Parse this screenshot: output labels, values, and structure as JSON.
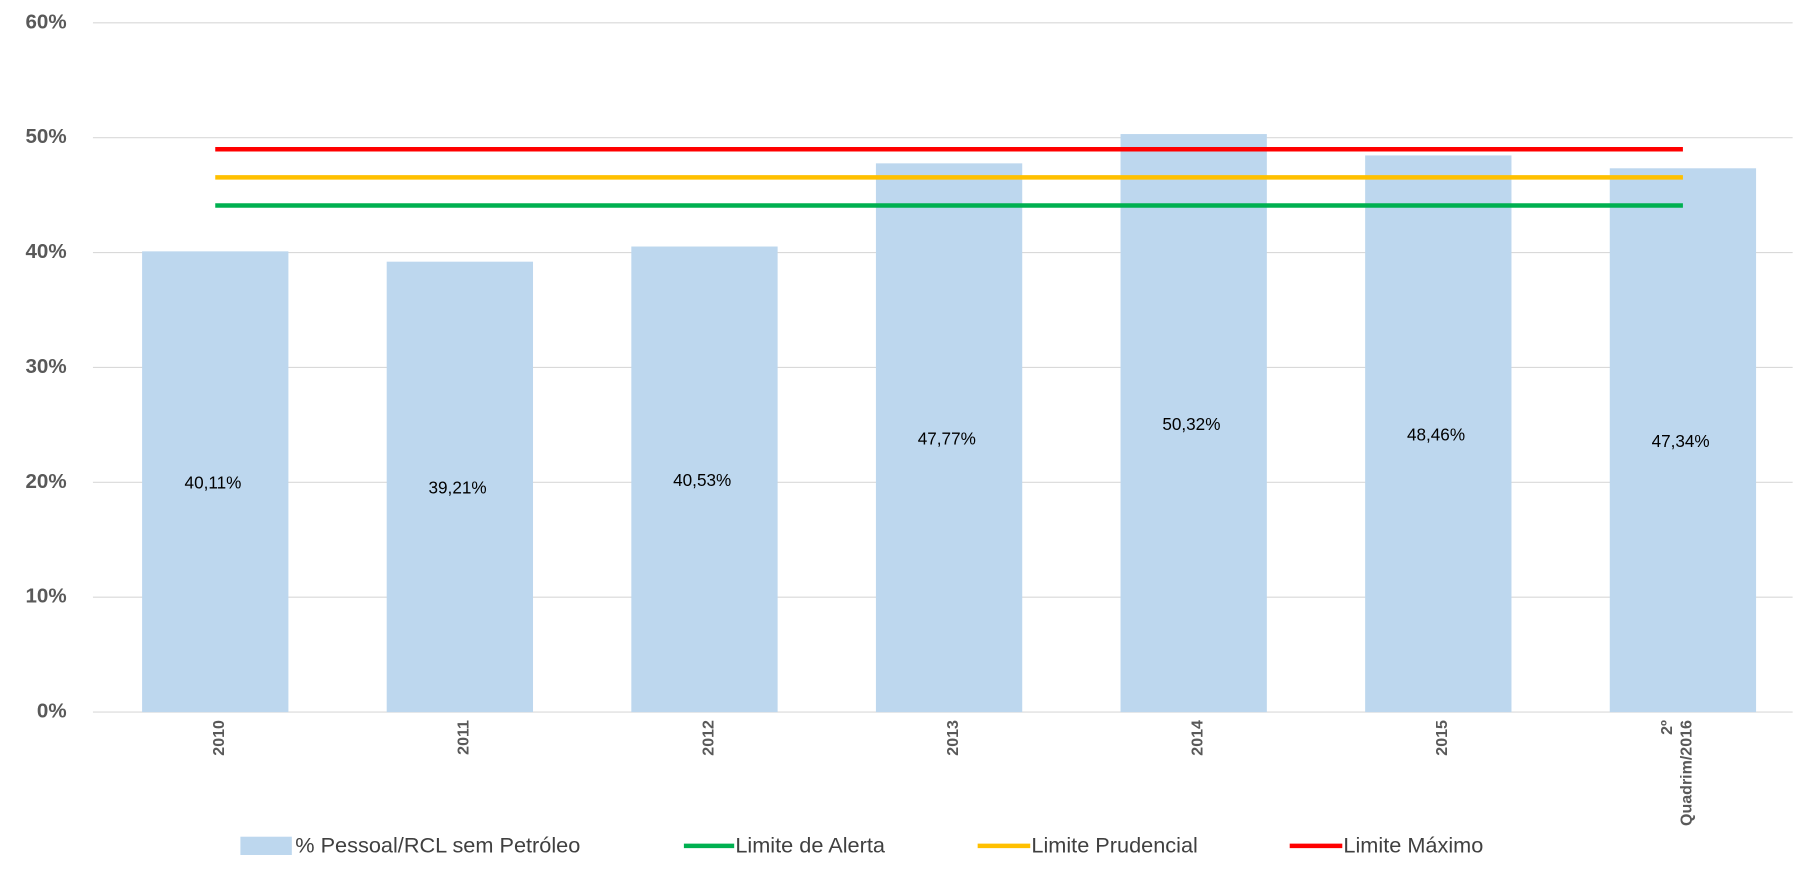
{
  "chart_data": {
    "type": "bar",
    "categories": [
      "2010",
      "2011",
      "2012",
      "2013",
      "2014",
      "2015",
      "2º Quadrim/2016"
    ],
    "series": [
      {
        "name": "% Pessoal/RCL sem Petróleo",
        "type": "bar",
        "color": "#bdd7ee",
        "values": [
          40.11,
          39.21,
          40.53,
          47.77,
          50.32,
          48.46,
          47.34
        ],
        "value_labels": [
          "40,11%",
          "39,21%",
          "40,53%",
          "47,77%",
          "50,32%",
          "48,46%",
          "47,34%"
        ]
      },
      {
        "name": "Limite de Alerta",
        "type": "line",
        "color": "#00b050",
        "values": [
          44.1,
          44.1,
          44.1,
          44.1,
          44.1,
          44.1,
          44.1
        ]
      },
      {
        "name": "Limite Prudencial",
        "type": "line",
        "color": "#ffc000",
        "values": [
          46.55,
          46.55,
          46.55,
          46.55,
          46.55,
          46.55,
          46.55
        ]
      },
      {
        "name": "Limite Máximo",
        "type": "line",
        "color": "#ff0000",
        "values": [
          49,
          49,
          49,
          49,
          49,
          49,
          49
        ]
      }
    ],
    "ylim": [
      0,
      60
    ],
    "yticks": [
      {
        "value": 0,
        "label": "0%"
      },
      {
        "value": 10,
        "label": "10%"
      },
      {
        "value": 20,
        "label": "20%"
      },
      {
        "value": 30,
        "label": "30%"
      },
      {
        "value": 40,
        "label": "40%"
      },
      {
        "value": 50,
        "label": "50%"
      },
      {
        "value": 60,
        "label": "60%"
      }
    ],
    "grid": true,
    "legend": "bottom"
  }
}
